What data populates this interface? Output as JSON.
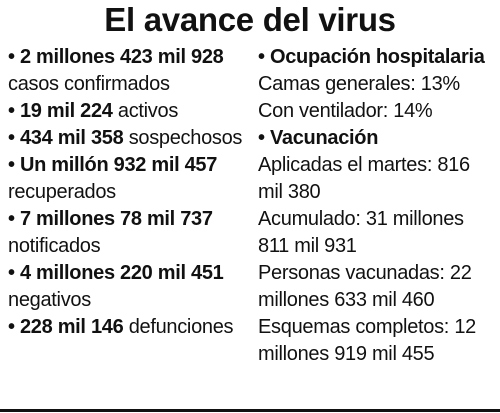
{
  "title": "El avance del virus",
  "bullet": "•",
  "left": [
    {
      "number": "2 millones 423 mil 928",
      "label": "casos confirmados"
    },
    {
      "number": "19 mil 224",
      "label": "activos"
    },
    {
      "number": "434 mil 358",
      "label": "sospechosos"
    },
    {
      "number": "Un millón 932 mil 457",
      "label": "recuperados"
    },
    {
      "number": "7 millones 78 mil 737",
      "label": "notificados"
    },
    {
      "number": "4 millones 220 mil 451",
      "label": "negativos"
    },
    {
      "number": "228 mil 146",
      "label": "defunciones"
    }
  ],
  "hospital": {
    "heading": "Ocupación hospitalaria",
    "camas_generales": "Camas generales: 13%",
    "con_ventilador": "Con ventilador: 14%"
  },
  "vacunacion": {
    "heading": "Vacunación",
    "aplicadas_martes": "Aplicadas el martes: 816 mil 380",
    "acumulado": "Acumulado: 31 millones 811 mil 931",
    "personas_vacunadas": "Personas vacunadas: 22 millones 633 mil 460",
    "esquemas_completos": "Esquemas completos: 12 millones 919 mil 455"
  }
}
